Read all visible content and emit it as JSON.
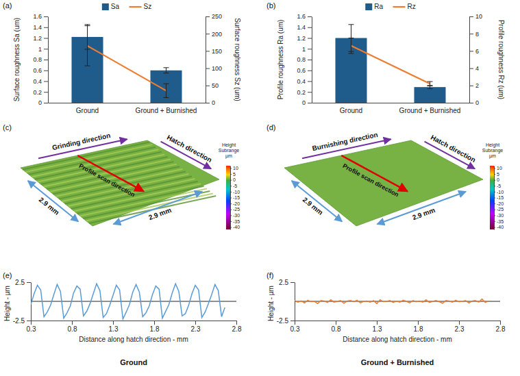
{
  "chart_data": [
    {
      "label": "(a)",
      "type": "bar",
      "categories": [
        "Ground",
        "Ground + Burnished"
      ],
      "series": [
        {
          "name": "Sa",
          "type": "bar",
          "color": "#1f5c8b",
          "values": [
            1.22,
            0.6
          ],
          "errors": [
            0.23,
            0.05
          ]
        },
        {
          "name": "Sz",
          "type": "line",
          "axis": "y2",
          "color": "#ed7d31",
          "values": [
            165,
            35
          ],
          "errors": [
            58,
            20
          ]
        }
      ],
      "y_label": "Surface roughness Sa (um)",
      "y2_label": "Surface roughness Sz (um)",
      "ylim": [
        0,
        1.6
      ],
      "yticks": [
        0,
        0.2,
        0.4,
        0.6,
        0.8,
        1,
        1.2,
        1.4,
        1.6
      ],
      "y2lim": [
        0,
        250
      ],
      "y2ticks": [
        0,
        50,
        100,
        150,
        200,
        250
      ],
      "legend": "top"
    },
    {
      "label": "(b)",
      "type": "bar",
      "categories": [
        "Ground",
        "Ground + Burnished"
      ],
      "series": [
        {
          "name": "Ra",
          "type": "bar",
          "color": "#1f5c8b",
          "values": [
            1.2,
            0.29
          ],
          "errors": [
            0.25,
            0.03
          ]
        },
        {
          "name": "Rz",
          "type": "line",
          "axis": "y2",
          "color": "#ed7d31",
          "values": [
            6.6,
            2.2
          ],
          "errors": [
            0.9,
            0.25
          ]
        }
      ],
      "y_label": "Profile roughness Ra (um)",
      "y2_label": "Profile roughness Rz (um)",
      "ylim": [
        0,
        1.6
      ],
      "yticks": [
        0,
        0.2,
        0.4,
        0.6,
        0.8,
        1,
        1.2,
        1.4,
        1.6
      ],
      "y2lim": [
        0,
        10
      ],
      "y2ticks": [
        0,
        2,
        4,
        6,
        8,
        10
      ],
      "legend": "top"
    },
    {
      "label": "(c)",
      "type": "surface",
      "annotations": [
        "Grinding direction",
        "Hatch direction",
        "Profile scan direction",
        "2.9 mm",
        "2.9 mm"
      ],
      "colorbar_title": [
        "Height",
        "Subrange",
        "µm"
      ],
      "colorbar_range": [
        -42,
        12
      ],
      "colorbar_ticks": [
        10,
        5,
        0,
        -5,
        -10,
        -15,
        -20,
        -25,
        -30,
        -35,
        -40
      ]
    },
    {
      "label": "(d)",
      "type": "surface",
      "annotations": [
        "Burnishing direction",
        "Hatch direction",
        "Profile scan direction",
        "2.9 mm",
        "2.9 mm"
      ],
      "colorbar_title": [
        "Height",
        "Subrange",
        "µm"
      ],
      "colorbar_range": [
        -42,
        12
      ],
      "colorbar_ticks": [
        10,
        5,
        0,
        -5,
        -10,
        -15,
        -20,
        -25,
        -30,
        -35,
        -40
      ]
    },
    {
      "label": "(e)",
      "type": "line",
      "caption": "Ground",
      "x": [
        0.3,
        0.34,
        0.38,
        0.42,
        0.46,
        0.5,
        0.54,
        0.58,
        0.62,
        0.66,
        0.7,
        0.74,
        0.78,
        0.82,
        0.86,
        0.9,
        0.94,
        0.98,
        1.02,
        1.06,
        1.1,
        1.14,
        1.18,
        1.22,
        1.26,
        1.3,
        1.34,
        1.38,
        1.42,
        1.46,
        1.5,
        1.54,
        1.58,
        1.62,
        1.66,
        1.7,
        1.74,
        1.78,
        1.82,
        1.86,
        1.9,
        1.94,
        1.98,
        2.02,
        2.06,
        2.1,
        2.14,
        2.18,
        2.22,
        2.26,
        2.3,
        2.34,
        2.38,
        2.42,
        2.46,
        2.5,
        2.54,
        2.58,
        2.62,
        2.66
      ],
      "series": [
        {
          "color": "#5b9bd5",
          "values": [
            -0.4,
            1.0,
            2.1,
            1.5,
            -2.0,
            -1.4,
            -0.5,
            0.9,
            2.2,
            1.3,
            -2.2,
            -1.5,
            -0.6,
            1.1,
            2.0,
            1.6,
            -1.9,
            -1.3,
            -0.3,
            1.0,
            2.3,
            1.4,
            -2.1,
            -1.6,
            -0.5,
            0.8,
            2.1,
            1.5,
            -2.3,
            -1.4,
            -0.4,
            1.2,
            2.2,
            1.2,
            -2.0,
            -1.5,
            -0.6,
            0.9,
            2.0,
            1.6,
            -2.2,
            -1.3,
            -0.4,
            1.1,
            2.3,
            1.3,
            -1.9,
            -1.6,
            -0.5,
            1.0,
            2.1,
            1.5,
            -2.1,
            -1.4,
            -0.3,
            0.9,
            2.2,
            1.4,
            -2.0,
            -0.8
          ]
        }
      ],
      "x_label": "Distance along hatch direction - mm",
      "y_label": "Height - µm",
      "xlim": [
        0.3,
        2.8
      ],
      "xticks": [
        0.3,
        0.8,
        1.3,
        1.8,
        2.3,
        2.8
      ],
      "ylim": [
        -2.5,
        2.5
      ],
      "yticks": [
        -2.5,
        2.5
      ]
    },
    {
      "label": "(f)",
      "type": "line",
      "caption": "Ground + Burnished",
      "x": [
        0.3,
        0.34,
        0.38,
        0.42,
        0.46,
        0.5,
        0.54,
        0.58,
        0.62,
        0.66,
        0.7,
        0.74,
        0.78,
        0.82,
        0.86,
        0.9,
        0.94,
        0.98,
        1.02,
        1.06,
        1.1,
        1.14,
        1.18,
        1.22,
        1.26,
        1.3,
        1.34,
        1.38,
        1.42,
        1.46,
        1.5,
        1.54,
        1.58,
        1.62,
        1.66,
        1.7,
        1.74,
        1.78,
        1.82,
        1.86,
        1.9,
        1.94,
        1.98,
        2.02,
        2.06,
        2.1,
        2.14,
        2.18,
        2.22,
        2.26,
        2.3,
        2.34,
        2.38,
        2.42,
        2.46,
        2.5,
        2.54,
        2.58,
        2.62,
        2.66
      ],
      "series": [
        {
          "color": "#ed7d31",
          "values": [
            0.1,
            -0.1,
            0.05,
            -0.2,
            0.15,
            -0.05,
            0.0,
            -0.3,
            0.1,
            0.05,
            -0.15,
            0.2,
            -0.1,
            0.0,
            0.1,
            -0.25,
            0.05,
            0.1,
            -0.05,
            0.15,
            -0.2,
            0.0,
            0.05,
            -0.1,
            0.1,
            -0.3,
            0.2,
            -0.05,
            0.0,
            0.1,
            -0.15,
            0.05,
            -0.1,
            0.15,
            0.0,
            -0.2,
            0.1,
            -0.05,
            0.05,
            -0.1,
            0.2,
            -0.15,
            0.0,
            0.1,
            -0.05,
            -0.25,
            0.1,
            0.05,
            -0.1,
            0.15,
            -0.05,
            0.0,
            0.1,
            -0.2,
            0.05,
            0.1,
            -0.1,
            0.3,
            -0.15,
            0.05
          ]
        }
      ],
      "x_label": "Distance along hatch direction - mm",
      "y_label": "Height - µm",
      "xlim": [
        0.3,
        2.8
      ],
      "xticks": [
        0.3,
        0.8,
        1.3,
        1.8,
        2.3,
        2.8
      ],
      "ylim": [
        -2.5,
        2.5
      ],
      "yticks": [
        -2.5,
        2.5
      ]
    }
  ]
}
